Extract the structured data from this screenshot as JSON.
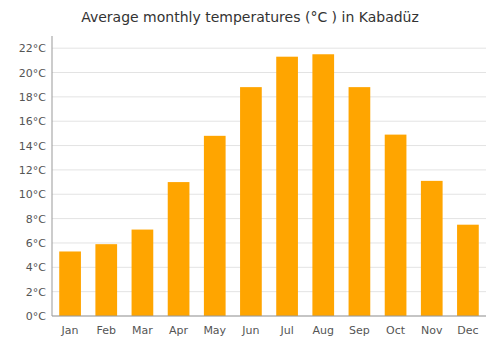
{
  "chart_data": {
    "type": "bar",
    "title": "Average monthly temperatures (°C ) in Kabadüz",
    "categories": [
      "Jan",
      "Feb",
      "Mar",
      "Apr",
      "May",
      "Jun",
      "Jul",
      "Aug",
      "Sep",
      "Oct",
      "Nov",
      "Dec"
    ],
    "values": [
      5.3,
      5.9,
      7.1,
      11.0,
      14.8,
      18.8,
      21.3,
      21.5,
      18.8,
      14.9,
      11.1,
      7.5
    ],
    "color": "#FFA500",
    "ylim": [
      0,
      23
    ],
    "yticks": [
      {
        "value": 0,
        "label": "0°C"
      },
      {
        "value": 2,
        "label": "2°C"
      },
      {
        "value": 4,
        "label": "4°C"
      },
      {
        "value": 6,
        "label": "6°C"
      },
      {
        "value": 8,
        "label": "8°C"
      },
      {
        "value": 10,
        "label": "10°C"
      },
      {
        "value": 12,
        "label": "12°C"
      },
      {
        "value": 14,
        "label": "14°C"
      },
      {
        "value": 16,
        "label": "16°C"
      },
      {
        "value": 18,
        "label": "18°C"
      },
      {
        "value": 20,
        "label": "20°C"
      },
      {
        "value": 22,
        "label": "22°C"
      }
    ],
    "grid": true
  }
}
